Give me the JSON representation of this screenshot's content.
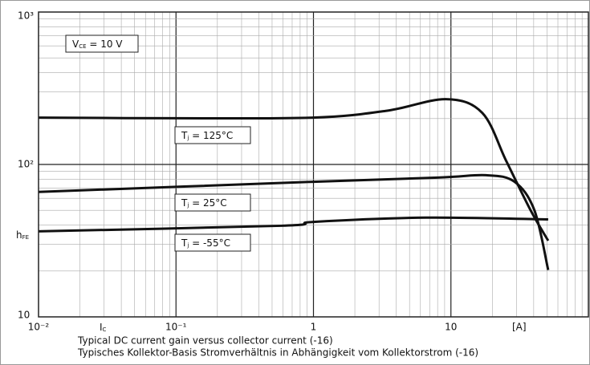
{
  "chart_data": {
    "type": "line",
    "log_x": true,
    "log_y": true,
    "grid": true,
    "xlim": [
      0.01,
      100
    ],
    "ylim": [
      10,
      1000
    ],
    "xticks": [
      {
        "value": 0.01,
        "label": "10⁻²"
      },
      {
        "value": 0.1,
        "label": "10⁻¹"
      },
      1,
      10
    ],
    "yticks": [
      {
        "value": 1000,
        "label": "10³"
      },
      {
        "value": 100,
        "label": "10²"
      },
      10
    ],
    "x_label": [
      "I",
      "C"
    ],
    "x_unit": "[A]",
    "y_label": [
      "h",
      "FE"
    ],
    "annotation": [
      "V",
      "CE",
      " = 10 V"
    ],
    "captions": [
      "Typical DC current gain versus collector current (-16)",
      "Typisches Kollektor-Basis Stromverhältnis in Abhängigkeit vom Kollektorstrom (-16)"
    ],
    "series": [
      {
        "label": [
          "T",
          "j",
          " = 125°C"
        ],
        "color": "#111111",
        "x": [
          0.01,
          0.1,
          1,
          3.4,
          9.2,
          16.9,
          25.3,
          38,
          51
        ],
        "values": [
          203,
          201,
          203,
          225,
          268,
          218,
          105,
          50,
          31.6
        ]
      },
      {
        "label": [
          "T",
          "j",
          " = 25°C"
        ],
        "color": "#111111",
        "x": [
          0.01,
          1,
          8,
          18,
          29,
          40.5,
          51
        ],
        "values": [
          66,
          77,
          82,
          85,
          77,
          50,
          20.3
        ]
      },
      {
        "label": [
          "T",
          "j",
          " = -55°C"
        ],
        "color": "#111111",
        "x": [
          0.01,
          0.58,
          1,
          6.6,
          51
        ],
        "values": [
          36.4,
          39.6,
          42,
          44.8,
          43.6
        ]
      }
    ]
  }
}
